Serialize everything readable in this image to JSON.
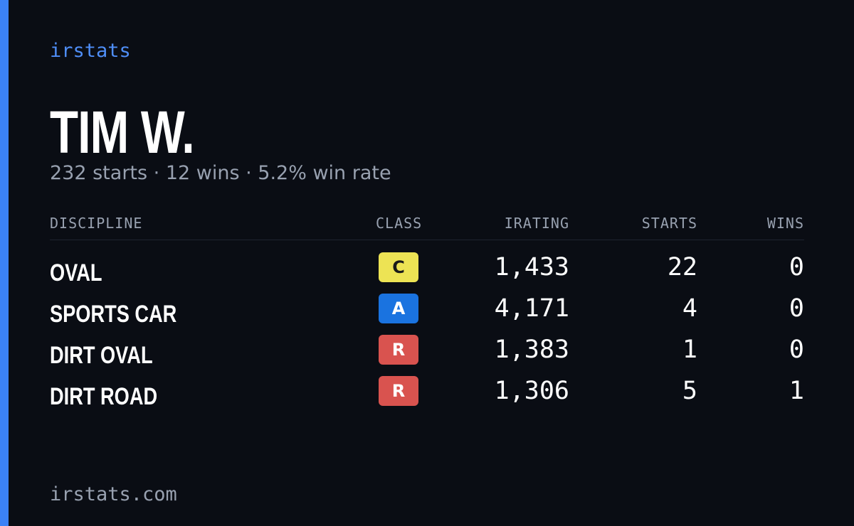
{
  "brand": "irstats",
  "driver": {
    "name": "TIM W.",
    "summary": "232 starts · 12 wins · 5.2% win rate"
  },
  "table": {
    "columns": [
      "DISCIPLINE",
      "CLASS",
      "IRATING",
      "STARTS",
      "WINS"
    ],
    "rows": [
      [
        "OVAL",
        "C",
        "1,433",
        "22",
        "0"
      ],
      [
        "SPORTS CAR",
        "A",
        "4,171",
        "4",
        "0"
      ],
      [
        "DIRT OVAL",
        "R",
        "1,383",
        "1",
        "0"
      ],
      [
        "DIRT ROAD",
        "R",
        "1,306",
        "5",
        "1"
      ]
    ]
  },
  "footer": "irstats.com"
}
